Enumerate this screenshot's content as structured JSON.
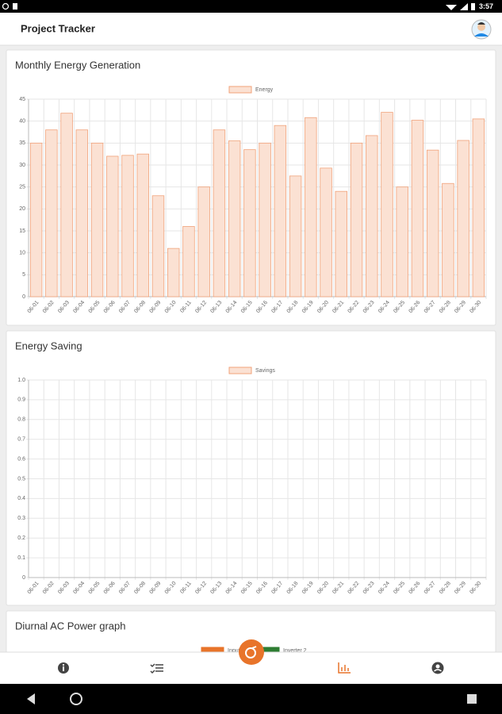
{
  "status_bar": {
    "time": "3:57"
  },
  "app_bar": {
    "title": "Project Tracker"
  },
  "chart_data": [
    {
      "type": "bar",
      "title": "Monthly Energy Generation",
      "categories": [
        "06-01",
        "06-02",
        "06-03",
        "06-04",
        "06-05",
        "06-06",
        "06-07",
        "06-08",
        "06-09",
        "06-10",
        "06-11",
        "06-12",
        "06-13",
        "06-14",
        "06-15",
        "06-16",
        "06-17",
        "06-18",
        "06-19",
        "06-20",
        "06-21",
        "06-22",
        "06-23",
        "06-24",
        "06-25",
        "06-26",
        "06-27",
        "06-28",
        "06-29",
        "06-30"
      ],
      "series": [
        {
          "name": "Energy",
          "color": "#f0a27a",
          "fill": "#fbe1d3",
          "values": [
            35,
            38,
            41.8,
            38,
            35,
            32,
            32.2,
            32.5,
            23,
            11,
            16,
            25,
            38,
            35.5,
            33.5,
            35,
            39,
            27.5,
            40.8,
            29.3,
            24,
            35,
            36.7,
            42,
            25,
            40.2,
            33.4,
            25.8,
            35.6,
            40.5
          ]
        }
      ],
      "ylim": [
        0,
        45
      ],
      "yticks": [
        0,
        5,
        10,
        15,
        20,
        25,
        30,
        35,
        40,
        45
      ],
      "grid": true
    },
    {
      "type": "bar",
      "title": "Energy Saving",
      "categories": [
        "06-01",
        "06-02",
        "06-03",
        "06-04",
        "06-05",
        "06-06",
        "06-07",
        "06-08",
        "06-09",
        "06-10",
        "06-11",
        "06-12",
        "06-13",
        "06-14",
        "06-15",
        "06-16",
        "06-17",
        "06-18",
        "06-19",
        "06-20",
        "06-21",
        "06-22",
        "06-23",
        "06-24",
        "06-25",
        "06-26",
        "06-27",
        "06-28",
        "06-29",
        "06-30"
      ],
      "series": [
        {
          "name": "Savings",
          "color": "#f0a27a",
          "fill": "#fbe1d3"
        }
      ],
      "ylim": [
        0,
        1
      ],
      "yticks": [
        0,
        0.1,
        0.2,
        0.3,
        0.4,
        0.5,
        0.6,
        0.7,
        0.8,
        0.9,
        {
          "value": 1,
          "label": "1.0"
        }
      ],
      "grid": true
    },
    {
      "type": "line",
      "title": "Diurnal AC Power graph",
      "series": [
        {
          "name": "Input",
          "color": "#e8742a",
          "fill": "#e8742a"
        },
        {
          "name": "Inverter 2",
          "color": "#2e7d32",
          "fill": "#2e7d32"
        }
      ]
    }
  ]
}
